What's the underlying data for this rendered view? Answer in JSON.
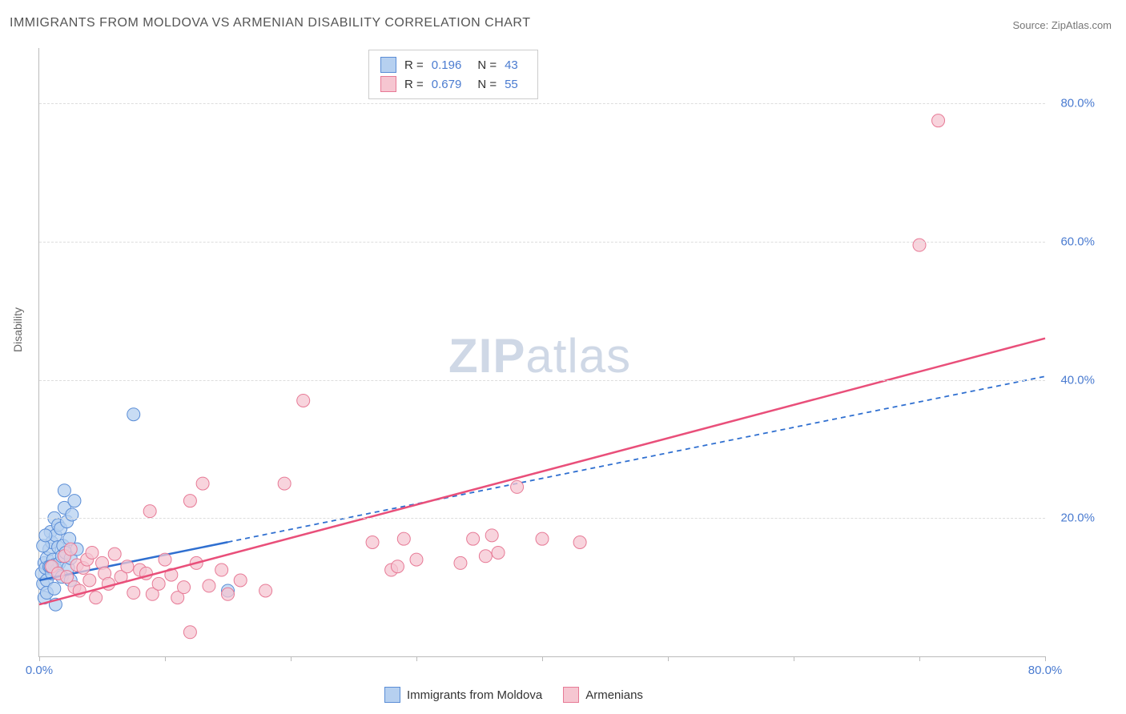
{
  "title": "IMMIGRANTS FROM MOLDOVA VS ARMENIAN DISABILITY CORRELATION CHART",
  "source": "Source: ZipAtlas.com",
  "ylabel": "Disability",
  "watermark": {
    "part1": "ZIP",
    "part2": "atlas"
  },
  "chart": {
    "type": "scatter",
    "xlim": [
      0,
      80
    ],
    "ylim": [
      0,
      88
    ],
    "xticks": [
      0,
      10,
      20,
      30,
      40,
      50,
      60,
      70,
      80
    ],
    "xtick_labels": [
      "0.0%",
      "",
      "",
      "",
      "",
      "",
      "",
      "",
      "80.0%"
    ],
    "yticks": [
      20,
      40,
      60,
      80
    ],
    "ytick_labels": [
      "20.0%",
      "40.0%",
      "60.0%",
      "80.0%"
    ],
    "gridline_color": "#dddddd",
    "background_color": "#ffffff",
    "series": [
      {
        "name": "Immigrants from Moldova",
        "marker_fill": "#b6d0f0",
        "marker_stroke": "#5a8dd6",
        "marker_radius": 8,
        "marker_opacity": 0.75,
        "trend_color": "#2f6fd0",
        "trend_dash": "6 5",
        "trend_solid_xmax": 15,
        "R": "0.196",
        "N": "43",
        "trendline": {
          "x0": 0,
          "y0": 11,
          "x1": 80,
          "y1": 40.5
        },
        "points": [
          [
            0.2,
            12.0
          ],
          [
            0.3,
            10.5
          ],
          [
            0.4,
            13.5
          ],
          [
            0.5,
            12.8
          ],
          [
            0.6,
            14.2
          ],
          [
            0.6,
            11.0
          ],
          [
            0.8,
            15.5
          ],
          [
            0.8,
            13.0
          ],
          [
            0.9,
            18.0
          ],
          [
            1.0,
            12.0
          ],
          [
            1.0,
            16.5
          ],
          [
            1.1,
            14.0
          ],
          [
            1.2,
            20.0
          ],
          [
            1.2,
            13.2
          ],
          [
            1.3,
            17.5
          ],
          [
            1.4,
            12.5
          ],
          [
            1.5,
            19.0
          ],
          [
            1.5,
            15.8
          ],
          [
            1.6,
            13.5
          ],
          [
            1.7,
            18.5
          ],
          [
            1.8,
            14.5
          ],
          [
            1.9,
            16.0
          ],
          [
            2.0,
            21.5
          ],
          [
            2.0,
            24.0
          ],
          [
            2.1,
            15.0
          ],
          [
            2.2,
            19.5
          ],
          [
            2.3,
            12.8
          ],
          [
            2.4,
            17.0
          ],
          [
            2.5,
            14.2
          ],
          [
            2.6,
            20.5
          ],
          [
            2.8,
            22.5
          ],
          [
            3.0,
            15.5
          ],
          [
            0.4,
            8.5
          ],
          [
            0.6,
            9.2
          ],
          [
            1.2,
            9.8
          ],
          [
            1.3,
            7.5
          ],
          [
            1.8,
            11.5
          ],
          [
            0.3,
            16.0
          ],
          [
            0.5,
            17.5
          ],
          [
            0.9,
            13.0
          ],
          [
            7.5,
            35.0
          ],
          [
            15.0,
            9.5
          ],
          [
            2.5,
            11.0
          ]
        ]
      },
      {
        "name": "Armenians",
        "marker_fill": "#f6c6d1",
        "marker_stroke": "#e77a96",
        "marker_radius": 8,
        "marker_opacity": 0.75,
        "trend_color": "#e94f7a",
        "trend_dash": "",
        "trend_solid_xmax": 80,
        "R": "0.679",
        "N": "55",
        "trendline": {
          "x0": 0,
          "y0": 7.5,
          "x1": 80,
          "y1": 46.0
        },
        "points": [
          [
            1.0,
            13.0
          ],
          [
            1.5,
            12.0
          ],
          [
            2.0,
            14.5
          ],
          [
            2.2,
            11.5
          ],
          [
            2.5,
            15.5
          ],
          [
            2.8,
            10.0
          ],
          [
            3.0,
            13.2
          ],
          [
            3.2,
            9.5
          ],
          [
            3.5,
            12.8
          ],
          [
            3.8,
            14.0
          ],
          [
            4.0,
            11.0
          ],
          [
            4.2,
            15.0
          ],
          [
            4.5,
            8.5
          ],
          [
            5.0,
            13.5
          ],
          [
            5.2,
            12.0
          ],
          [
            5.5,
            10.5
          ],
          [
            6.0,
            14.8
          ],
          [
            6.5,
            11.5
          ],
          [
            7.0,
            13.0
          ],
          [
            7.5,
            9.2
          ],
          [
            8.0,
            12.5
          ],
          [
            8.5,
            12.0
          ],
          [
            8.8,
            21.0
          ],
          [
            9.0,
            9.0
          ],
          [
            9.5,
            10.5
          ],
          [
            10.0,
            14.0
          ],
          [
            10.5,
            11.8
          ],
          [
            11.0,
            8.5
          ],
          [
            11.5,
            10.0
          ],
          [
            12.0,
            22.5
          ],
          [
            12.5,
            13.5
          ],
          [
            13.0,
            25.0
          ],
          [
            13.5,
            10.2
          ],
          [
            14.5,
            12.5
          ],
          [
            15.0,
            9.0
          ],
          [
            16.0,
            11.0
          ],
          [
            18.0,
            9.5
          ],
          [
            19.5,
            25.0
          ],
          [
            21.0,
            37.0
          ],
          [
            12.0,
            3.5
          ],
          [
            26.5,
            16.5
          ],
          [
            28.0,
            12.5
          ],
          [
            28.5,
            13.0
          ],
          [
            29.0,
            17.0
          ],
          [
            30.0,
            14.0
          ],
          [
            33.5,
            13.5
          ],
          [
            34.5,
            17.0
          ],
          [
            35.5,
            14.5
          ],
          [
            36.0,
            17.5
          ],
          [
            36.5,
            15.0
          ],
          [
            38.0,
            24.5
          ],
          [
            40.0,
            17.0
          ],
          [
            43.0,
            16.5
          ],
          [
            71.5,
            77.5
          ],
          [
            70.0,
            59.5
          ]
        ]
      }
    ]
  },
  "legend_top": {
    "rows": [
      {
        "swatch_fill": "#b6d0f0",
        "swatch_stroke": "#5a8dd6",
        "r_label": "R =",
        "r_value": "0.196",
        "n_label": "N =",
        "n_value": "43"
      },
      {
        "swatch_fill": "#f6c6d1",
        "swatch_stroke": "#e77a96",
        "r_label": "R =",
        "r_value": "0.679",
        "n_label": "N =",
        "n_value": "55"
      }
    ]
  },
  "legend_bottom": {
    "items": [
      {
        "swatch_fill": "#b6d0f0",
        "swatch_stroke": "#5a8dd6",
        "label": "Immigrants from Moldova"
      },
      {
        "swatch_fill": "#f6c6d1",
        "swatch_stroke": "#e77a96",
        "label": "Armenians"
      }
    ]
  }
}
